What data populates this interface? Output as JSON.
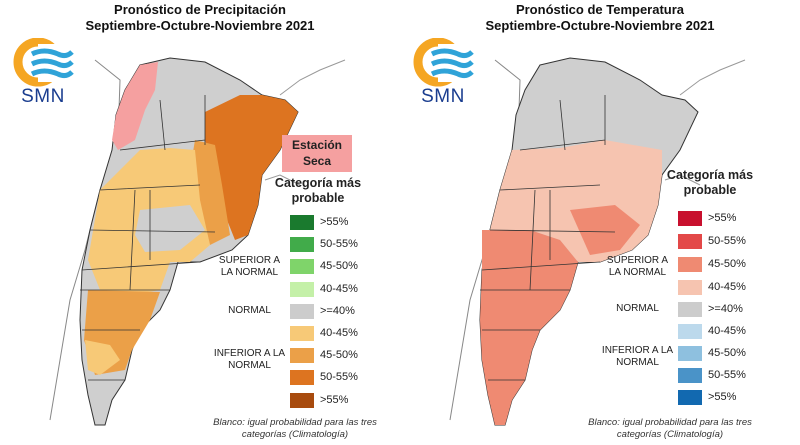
{
  "left_panel": {
    "title_line1": "Pronóstico de Precipitación",
    "title_line2": "Septiembre-Octubre-Noviembre 2021",
    "logo_text": "SMN",
    "dry_season_label": "Estación Seca",
    "legend_title": "Categoría más probable",
    "legend": [
      {
        "label": ">55%",
        "color": "#1a7a2e"
      },
      {
        "label": "50-55%",
        "color": "#41ab4a"
      },
      {
        "label": "45-50%",
        "color": "#7fd46a"
      },
      {
        "label": "40-45%",
        "color": "#c4f0a8"
      },
      {
        "label": ">=40%",
        "color": "#cccccc"
      },
      {
        "label": "40-45%",
        "color": "#f7c977"
      },
      {
        "label": "45-50%",
        "color": "#eba048"
      },
      {
        "label": "50-55%",
        "color": "#dd7420"
      },
      {
        "label": ">55%",
        "color": "#a84b0e"
      }
    ],
    "categories": {
      "superior": "SUPERIOR A LA NORMAL",
      "normal": "NORMAL",
      "inferior": "INFERIOR A LA NORMAL"
    },
    "note": "Blanco: igual probabilidad para las tres categorías (Climatología)"
  },
  "right_panel": {
    "title_line1": "Pronóstico de Temperatura",
    "title_line2": "Septiembre-Octubre-Noviembre 2021",
    "logo_text": "SMN",
    "legend_title": "Categoría más probable",
    "legend": [
      {
        "label": ">55%",
        "color": "#c8102e"
      },
      {
        "label": "50-55%",
        "color": "#e34848"
      },
      {
        "label": "45-50%",
        "color": "#ef8a72"
      },
      {
        "label": "40-45%",
        "color": "#f6c4b0"
      },
      {
        "label": ">=40%",
        "color": "#cccccc"
      },
      {
        "label": "40-45%",
        "color": "#bcd9ec"
      },
      {
        "label": "45-50%",
        "color": "#8ec0df"
      },
      {
        "label": "50-55%",
        "color": "#4a93c8"
      },
      {
        "label": ">55%",
        "color": "#1269b0"
      }
    ],
    "categories": {
      "superior": "SUPERIOR A LA NORMAL",
      "normal": "NORMAL",
      "inferior": "INFERIOR A LA NORMAL"
    },
    "note": "Blanco: igual probabilidad para las tres categorías (Climatología)"
  }
}
